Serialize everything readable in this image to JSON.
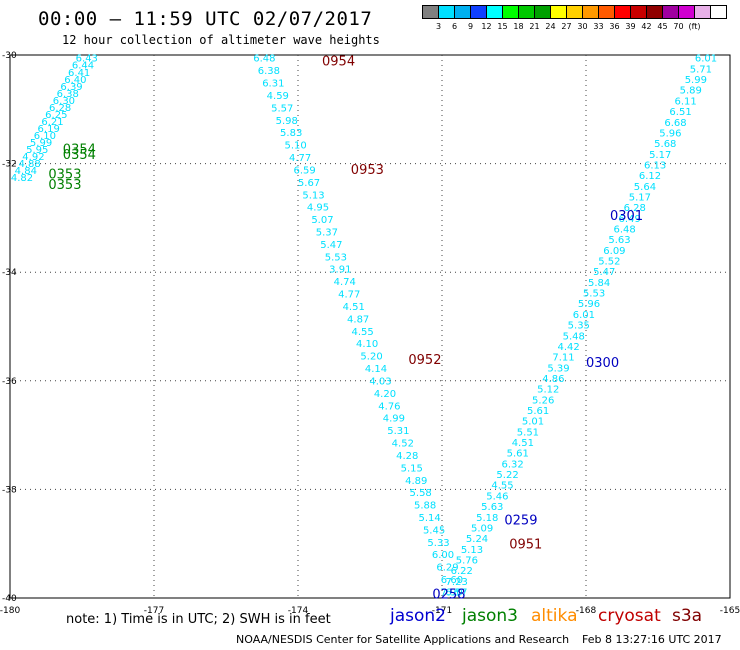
{
  "header": {
    "title": "00:00 — 11:59 UTC 02/07/2017",
    "subtitle": "12 hour collection of altimeter wave heights"
  },
  "color_scale": {
    "colors": [
      "#808080",
      "#00e0ff",
      "#00b0f0",
      "#1040ff",
      "#00ffff",
      "#00ff00",
      "#00c800",
      "#00a000",
      "#ffff00",
      "#ffd000",
      "#ff9900",
      "#ff5a00",
      "#ff0000",
      "#c80000",
      "#900000",
      "#a000a0",
      "#d000d0",
      "#e8b0e8",
      "#ffffff"
    ],
    "labels": [
      "3",
      "6",
      "9",
      "12",
      "15",
      "18",
      "21",
      "24",
      "27",
      "30",
      "33",
      "36",
      "39",
      "42",
      "45",
      "70",
      "(ft)"
    ]
  },
  "map": {
    "lon_range": [
      -180,
      -165
    ],
    "lat_range": [
      -40,
      -30
    ],
    "lon_ticks": [
      "-180",
      "-177",
      "-174",
      "-171",
      "-168",
      "-165"
    ],
    "lat_ticks": [
      "-30",
      "-32",
      "-34",
      "-36",
      "-38",
      "-40"
    ],
    "tracks": [
      {
        "satellite": "jason3",
        "color": "#008000",
        "text_color": "#00e0ff",
        "start": [
          -178.4,
          -30.05
        ],
        "end": [
          -179.75,
          -32.25
        ],
        "values": [
          "6.43",
          "6.44",
          "6.41",
          "6.40",
          "6.39",
          "6.38",
          "6.30",
          "6.28",
          "6.25",
          "6.21",
          "6.19",
          "6.10",
          "5.99",
          "5.95",
          "4.92",
          "4.88",
          "4.84",
          "4.82"
        ],
        "time_labels": [
          {
            "text": "0354",
            "lon": -178.9,
            "lat": -31.72
          },
          {
            "text": "0354",
            "lon": -178.9,
            "lat": -31.82
          },
          {
            "text": "0353",
            "lon": -179.2,
            "lat": -32.18
          },
          {
            "text": "0353",
            "lon": -179.2,
            "lat": -32.38
          }
        ]
      },
      {
        "satellite": "cryosat",
        "color": "#800000",
        "text_color": "#00e0ff",
        "start": [
          -174.7,
          -30.05
        ],
        "end": [
          -170.7,
          -39.88
        ],
        "values": [
          "6.48",
          "6.38",
          "6.31",
          "4.59",
          "5.57",
          "5.98",
          "5.83",
          "5.10",
          "4.77",
          "6.59",
          "5.67",
          "5.13",
          "4.95",
          "5.07",
          "5.37",
          "5.47",
          "5.53",
          "3.91",
          "4.74",
          "4.77",
          "4.51",
          "4.87",
          "4.55",
          "4.10",
          "5.20",
          "4.14",
          "4.03",
          "4.20",
          "4.76",
          "4.99",
          "5.31",
          "4.52",
          "4.28",
          "5.15",
          "4.89",
          "5.58",
          "5.88",
          "5.14",
          "5.45",
          "5.33",
          "6.00",
          "6.29",
          "6.60",
          "6.57"
        ],
        "time_labels": [
          {
            "text": "0954",
            "lon": -173.5,
            "lat": -30.1
          },
          {
            "text": "0953",
            "lon": -172.9,
            "lat": -32.1
          },
          {
            "text": "0952",
            "lon": -171.7,
            "lat": -35.6
          },
          {
            "text": "0951",
            "lon": -169.6,
            "lat": -39.0
          }
        ]
      },
      {
        "satellite": "jason2",
        "color": "#0000c0",
        "text_color": "#00e0ff",
        "start": [
          -165.5,
          -30.05
        ],
        "end": [
          -170.8,
          -39.88
        ],
        "values": [
          "6.01",
          "5.71",
          "5.99",
          "5.89",
          "6.11",
          "6.51",
          "6.68",
          "5.96",
          "5.68",
          "5.17",
          "6.13",
          "6.12",
          "5.64",
          "5.17",
          "6.28",
          "6.49",
          "6.48",
          "5.63",
          "6.09",
          "5.52",
          "5.47",
          "5.84",
          "5.53",
          "5.96",
          "6.01",
          "5.35",
          "5.48",
          "4.42",
          "7.11",
          "5.39",
          "4.86",
          "5.12",
          "5.26",
          "5.61",
          "5.01",
          "5.51",
          "4.51",
          "5.61",
          "6.32",
          "5.22",
          "4.55",
          "5.46",
          "5.63",
          "5.18",
          "5.09",
          "5.24",
          "5.13",
          "5.76",
          "6.22",
          "7.23",
          "7.90"
        ],
        "time_labels": [
          {
            "text": "030",
            "lon": -164.8,
            "lat": -30.12
          },
          {
            "text": "0301",
            "lon": -167.5,
            "lat": -32.95
          },
          {
            "text": "0300",
            "lon": -168.0,
            "lat": -35.65
          },
          {
            "text": "0259",
            "lon": -169.7,
            "lat": -38.55
          },
          {
            "text": "0258",
            "lon": -171.2,
            "lat": -39.92
          }
        ]
      }
    ]
  },
  "footer": {
    "note": "note:  1) Time is in UTC;  2) SWH is in feet",
    "legend": [
      {
        "label": "jason2",
        "color": "#0000d0"
      },
      {
        "label": "jason3",
        "color": "#008000"
      },
      {
        "label": "altika",
        "color": "#ff8c00"
      },
      {
        "label": "cryosat",
        "color": "#c00000"
      },
      {
        "label": "s3a",
        "color": "#800000"
      }
    ],
    "credit": "NOAA/NESDIS Center for Satellite Applications and Research",
    "timestamp": "Feb  8 13:27:16 UTC 2017"
  }
}
